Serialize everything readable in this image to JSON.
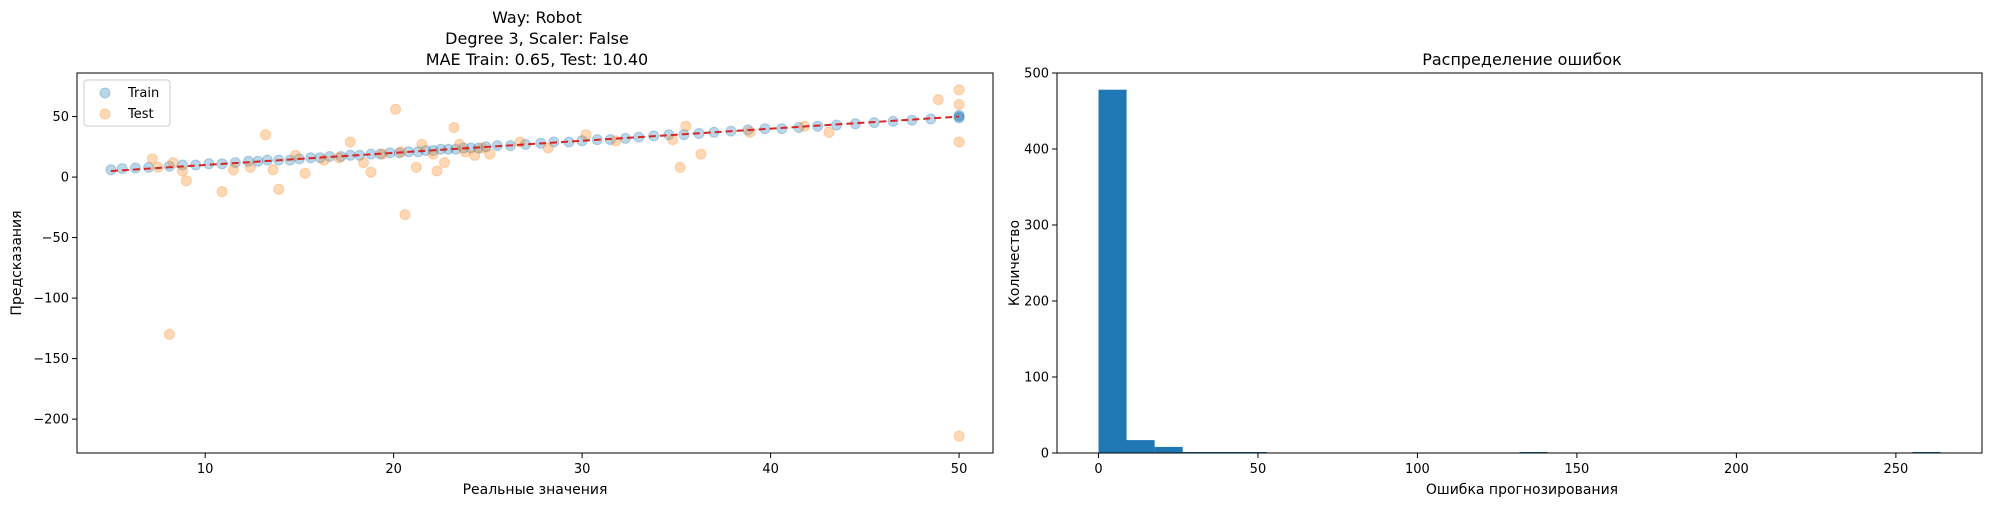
{
  "chart_data": [
    {
      "type": "scatter",
      "title_lines": [
        "Way: Robot",
        "Degree 3, Scaler: False",
        "MAE Train: 0.65, Test: 10.40"
      ],
      "xlabel": "Реальные значения",
      "ylabel": "Предсказания",
      "xlim": [
        3.2,
        51.8
      ],
      "ylim": [
        -228,
        86
      ],
      "xticks": [
        10,
        20,
        30,
        40,
        50
      ],
      "yticks": [
        50,
        0,
        -50,
        -100,
        -150,
        -200
      ],
      "legend": {
        "position": "upper-left",
        "entries": [
          "Train",
          "Test"
        ]
      },
      "colors": {
        "train": "#1f77b4",
        "test": "#ff7f0e",
        "ideal": "#d62728"
      },
      "ideal_line": {
        "x": [
          5,
          50
        ],
        "y": [
          5,
          50
        ]
      },
      "series": [
        {
          "name": "Train",
          "points": [
            [
              5,
              6
            ],
            [
              5.6,
              7
            ],
            [
              6.3,
              7.5
            ],
            [
              7,
              8
            ],
            [
              8.1,
              9
            ],
            [
              8.8,
              10
            ],
            [
              9.5,
              10
            ],
            [
              10.2,
              11
            ],
            [
              10.9,
              11
            ],
            [
              11.6,
              12
            ],
            [
              12.3,
              13
            ],
            [
              12.8,
              13
            ],
            [
              13.3,
              14
            ],
            [
              13.9,
              14
            ],
            [
              14.5,
              14
            ],
            [
              15,
              15
            ],
            [
              15.6,
              16
            ],
            [
              16.1,
              16
            ],
            [
              16.6,
              17
            ],
            [
              17.2,
              17
            ],
            [
              17.7,
              18
            ],
            [
              18.2,
              18
            ],
            [
              18.8,
              19
            ],
            [
              19.3,
              19
            ],
            [
              19.8,
              20
            ],
            [
              20.3,
              20
            ],
            [
              20.8,
              21
            ],
            [
              21.3,
              21
            ],
            [
              21.7,
              22
            ],
            [
              22.1,
              22
            ],
            [
              22.5,
              23
            ],
            [
              22.9,
              23
            ],
            [
              23.3,
              23
            ],
            [
              23.7,
              24
            ],
            [
              24.1,
              24
            ],
            [
              24.5,
              24
            ],
            [
              24.9,
              25
            ],
            [
              25.5,
              26
            ],
            [
              26.2,
              26
            ],
            [
              27,
              27
            ],
            [
              27.8,
              28
            ],
            [
              28.5,
              29
            ],
            [
              29.3,
              29
            ],
            [
              30,
              30
            ],
            [
              30.8,
              31
            ],
            [
              31.5,
              31
            ],
            [
              32.3,
              32
            ],
            [
              33,
              33
            ],
            [
              33.8,
              34
            ],
            [
              34.6,
              35
            ],
            [
              35.4,
              35
            ],
            [
              36.2,
              36
            ],
            [
              37,
              37
            ],
            [
              37.9,
              38
            ],
            [
              38.8,
              39
            ],
            [
              39.7,
              40
            ],
            [
              40.6,
              40
            ],
            [
              41.5,
              41
            ],
            [
              42.5,
              42
            ],
            [
              43.5,
              43
            ],
            [
              44.5,
              44
            ],
            [
              45.5,
              45
            ],
            [
              46.5,
              46
            ],
            [
              47.5,
              47
            ],
            [
              48.5,
              48
            ],
            [
              50,
              50
            ],
            [
              50,
              51
            ],
            [
              50,
              49
            ]
          ]
        },
        {
          "name": "Test",
          "points": [
            [
              7.2,
              15
            ],
            [
              7.5,
              8
            ],
            [
              8.3,
              12
            ],
            [
              8.8,
              5
            ],
            [
              9,
              -3
            ],
            [
              8.1,
              -130
            ],
            [
              10.9,
              -12
            ],
            [
              11.5,
              6
            ],
            [
              12.4,
              8
            ],
            [
              13.2,
              35
            ],
            [
              13.6,
              6
            ],
            [
              13.9,
              -10
            ],
            [
              14.8,
              18
            ],
            [
              15.3,
              3
            ],
            [
              16.3,
              14
            ],
            [
              17.1,
              16
            ],
            [
              17.7,
              29
            ],
            [
              18.4,
              12
            ],
            [
              18.8,
              4
            ],
            [
              19.4,
              19
            ],
            [
              20.1,
              56
            ],
            [
              20.4,
              21
            ],
            [
              20.6,
              -31
            ],
            [
              21.2,
              8
            ],
            [
              21.5,
              27
            ],
            [
              22.1,
              19
            ],
            [
              22.3,
              5
            ],
            [
              22.7,
              12
            ],
            [
              23.2,
              41
            ],
            [
              23.5,
              27
            ],
            [
              23.8,
              21
            ],
            [
              24.3,
              18
            ],
            [
              24.7,
              24
            ],
            [
              25.1,
              19
            ],
            [
              26.7,
              29
            ],
            [
              28.2,
              24
            ],
            [
              30.2,
              35
            ],
            [
              31.8,
              30
            ],
            [
              34.8,
              31
            ],
            [
              35.2,
              8
            ],
            [
              35.5,
              42
            ],
            [
              36.3,
              19
            ],
            [
              38.9,
              37
            ],
            [
              41.8,
              42
            ],
            [
              43.1,
              37
            ],
            [
              48.9,
              64
            ],
            [
              50,
              72
            ],
            [
              50,
              60
            ],
            [
              50,
              29
            ],
            [
              50,
              -214
            ]
          ]
        }
      ]
    },
    {
      "type": "bar",
      "subtype": "histogram",
      "title": "Распределение ошибок",
      "xlabel": "Ошибка прогнозирования",
      "ylabel": "Количество",
      "xlim": [
        -13,
        277
      ],
      "ylim": [
        0,
        500
      ],
      "xticks": [
        0,
        50,
        100,
        150,
        200,
        250
      ],
      "yticks": [
        0,
        100,
        200,
        300,
        400,
        500
      ],
      "color": "#1f77b4",
      "bins": [
        {
          "x0": 0,
          "x1": 8.8,
          "count": 478
        },
        {
          "x0": 8.8,
          "x1": 17.6,
          "count": 17
        },
        {
          "x0": 17.6,
          "x1": 26.4,
          "count": 8
        },
        {
          "x0": 26.4,
          "x1": 35.2,
          "count": 1
        },
        {
          "x0": 35.2,
          "x1": 44,
          "count": 1
        },
        {
          "x0": 44,
          "x1": 52.8,
          "count": 1
        },
        {
          "x0": 132,
          "x1": 140.8,
          "count": 1
        },
        {
          "x0": 255.2,
          "x1": 264,
          "count": 1
        }
      ]
    }
  ]
}
